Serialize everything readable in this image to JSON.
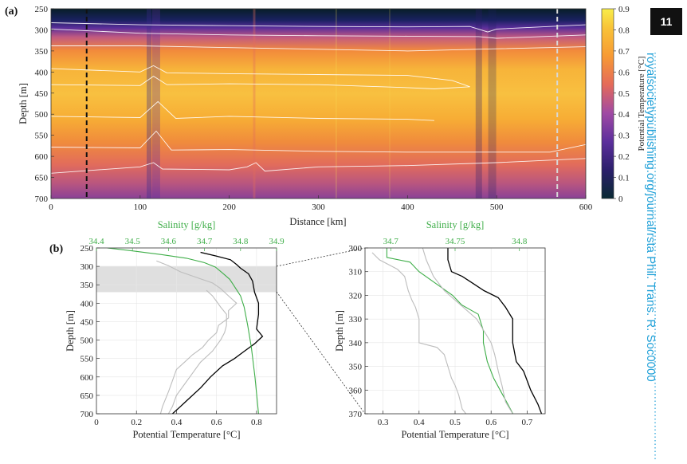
{
  "page_number": "11",
  "side_text": "royalsocietypublishing.org/journal/rsta Phil. Trans. R. Soc0000",
  "colors": {
    "green": "#3fae49",
    "black": "#000000",
    "grey": "#bdbdbd",
    "inset": "#d6d6d6"
  },
  "chart_data": [
    {
      "panel_label": "(a)",
      "type": "heatmap",
      "xlabel": "Distance [km]",
      "ylabel": "Depth [m]",
      "xlim": [
        0,
        600
      ],
      "ylim": [
        250,
        700
      ],
      "xticks": [
        "0",
        "100",
        "200",
        "300",
        "400",
        "500",
        "600"
      ],
      "yticks": [
        "250",
        "300",
        "350",
        "400",
        "450",
        "500",
        "550",
        "600",
        "650",
        "700"
      ],
      "colorbar": {
        "label": "Potential Temperature [°C]",
        "min": 0,
        "max": 0.9,
        "ticks": [
          "0",
          "0.1",
          "0.2",
          "0.3",
          "0.4",
          "0.5",
          "0.6",
          "0.7",
          "0.8",
          "0.9"
        ]
      },
      "vertical_markers": [
        {
          "x": 40,
          "color": "black"
        },
        {
          "x": 568,
          "color": "grey"
        }
      ],
      "contours": [
        {
          "level": 0.1,
          "points": [
            [
              0,
              283
            ],
            [
              100,
              288
            ],
            [
              200,
              290
            ],
            [
              300,
              292
            ],
            [
              400,
              293
            ],
            [
              470,
              292
            ],
            [
              490,
              305
            ],
            [
              500,
              298
            ],
            [
              600,
              288
            ]
          ]
        },
        {
          "level": 0.3,
          "points": [
            [
              0,
              298
            ],
            [
              100,
              308
            ],
            [
              200,
              312
            ],
            [
              300,
              314
            ],
            [
              400,
              315
            ],
            [
              480,
              316
            ],
            [
              500,
              320
            ],
            [
              600,
              312
            ]
          ]
        },
        {
          "level": 0.6,
          "points": [
            [
              0,
              338
            ],
            [
              100,
              338
            ],
            [
              200,
              342
            ],
            [
              300,
              346
            ],
            [
              400,
              350
            ],
            [
              500,
              345
            ],
            [
              600,
              340
            ]
          ]
        },
        {
          "level": 0.8,
          "points": [
            [
              0,
              392
            ],
            [
              100,
              400
            ],
            [
              115,
              385
            ],
            [
              130,
              402
            ],
            [
              200,
              404
            ],
            [
              300,
              406
            ],
            [
              400,
              408
            ],
            [
              450,
              420
            ],
            [
              470,
              435
            ],
            [
              430,
              440
            ],
            [
              400,
              437
            ],
            [
              300,
              430
            ],
            [
              200,
              428
            ],
            [
              130,
              430
            ],
            [
              115,
              410
            ],
            [
              100,
              432
            ],
            [
              0,
              430
            ]
          ]
        },
        {
          "level": 0.7,
          "points": [
            [
              0,
              505
            ],
            [
              100,
              508
            ],
            [
              120,
              470
            ],
            [
              140,
              510
            ],
            [
              200,
              505
            ],
            [
              300,
              510
            ],
            [
              400,
              512
            ],
            [
              430,
              515
            ]
          ]
        },
        {
          "level": 0.5,
          "points": [
            [
              0,
              578
            ],
            [
              100,
              580
            ],
            [
              118,
              540
            ],
            [
              135,
              585
            ],
            [
              200,
              584
            ],
            [
              300,
              588
            ],
            [
              400,
              590
            ],
            [
              500,
              590
            ],
            [
              560,
              590
            ],
            [
              600,
              572
            ]
          ]
        },
        {
          "level": 0.3,
          "points": [
            [
              0,
              640
            ],
            [
              100,
              625
            ],
            [
              115,
              615
            ],
            [
              125,
              630
            ],
            [
              200,
              632
            ],
            [
              220,
              625
            ],
            [
              230,
              615
            ],
            [
              240,
              635
            ],
            [
              300,
              625
            ],
            [
              400,
              622
            ],
            [
              500,
              615
            ],
            [
              600,
              605
            ]
          ]
        }
      ]
    },
    {
      "panel_label": "(b)",
      "type": "line",
      "xlabel": "Potential Temperature [°C]",
      "ylabel": "Depth [m]",
      "top_xlabel": "Salinity [g/kg]",
      "xlim": [
        0,
        0.9
      ],
      "ylim": [
        250,
        700
      ],
      "salinity_lim": [
        34.4,
        34.9
      ],
      "xticks": [
        "0",
        "0.2",
        "0.4",
        "0.6",
        "0.8"
      ],
      "top_xticks": [
        "34.4",
        "34.5",
        "34.6",
        "34.7",
        "34.8",
        "34.9"
      ],
      "yticks": [
        "250",
        "300",
        "350",
        "400",
        "450",
        "500",
        "550",
        "600",
        "650",
        "700"
      ],
      "highlight_band": [
        300,
        370
      ],
      "series": [
        {
          "color": "black",
          "axis": "temperature",
          "points": [
            [
              0.52,
              262
            ],
            [
              0.6,
              272
            ],
            [
              0.67,
              282
            ],
            [
              0.7,
              295
            ],
            [
              0.72,
              305
            ],
            [
              0.76,
              320
            ],
            [
              0.78,
              340
            ],
            [
              0.79,
              370
            ],
            [
              0.8,
              385
            ],
            [
              0.81,
              400
            ],
            [
              0.81,
              430
            ],
            [
              0.8,
              470
            ],
            [
              0.83,
              490
            ],
            [
              0.79,
              510
            ],
            [
              0.74,
              530
            ],
            [
              0.69,
              550
            ],
            [
              0.63,
              570
            ],
            [
              0.57,
              600
            ],
            [
              0.52,
              630
            ],
            [
              0.46,
              660
            ],
            [
              0.42,
              680
            ],
            [
              0.38,
              700
            ]
          ]
        },
        {
          "color": "grey",
          "axis": "temperature",
          "points": [
            [
              0.3,
              285
            ],
            [
              0.36,
              298
            ],
            [
              0.42,
              315
            ],
            [
              0.5,
              330
            ],
            [
              0.58,
              345
            ],
            [
              0.62,
              360
            ],
            [
              0.66,
              380
            ],
            [
              0.7,
              400
            ],
            [
              0.66,
              420
            ],
            [
              0.66,
              440
            ],
            [
              0.61,
              460
            ],
            [
              0.6,
              480
            ],
            [
              0.56,
              500
            ],
            [
              0.53,
              520
            ],
            [
              0.48,
              540
            ],
            [
              0.44,
              560
            ],
            [
              0.4,
              580
            ],
            [
              0.38,
              610
            ],
            [
              0.36,
              640
            ],
            [
              0.33,
              680
            ],
            [
              0.32,
              700
            ]
          ]
        },
        {
          "color": "grey",
          "axis": "temperature",
          "points": [
            [
              0.55,
              365
            ],
            [
              0.58,
              380
            ],
            [
              0.6,
              395
            ],
            [
              0.62,
              410
            ],
            [
              0.65,
              430
            ],
            [
              0.65,
              460
            ],
            [
              0.64,
              480
            ],
            [
              0.62,
              500
            ],
            [
              0.58,
              530
            ],
            [
              0.52,
              560
            ],
            [
              0.48,
              590
            ],
            [
              0.44,
              620
            ],
            [
              0.4,
              650
            ],
            [
              0.38,
              680
            ],
            [
              0.36,
              700
            ]
          ]
        },
        {
          "color": "green",
          "axis": "salinity",
          "points": [
            [
              34.43,
              250
            ],
            [
              34.5,
              258
            ],
            [
              34.58,
              268
            ],
            [
              34.65,
              278
            ],
            [
              34.7,
              290
            ],
            [
              34.73,
              302
            ],
            [
              34.75,
              318
            ],
            [
              34.77,
              335
            ],
            [
              34.78,
              350
            ],
            [
              34.79,
              365
            ],
            [
              34.8,
              380
            ],
            [
              34.81,
              410
            ],
            [
              34.82,
              460
            ],
            [
              34.83,
              520
            ],
            [
              34.84,
              600
            ],
            [
              34.85,
              700
            ]
          ]
        }
      ]
    },
    {
      "type": "line",
      "xlabel": "Potential Temperature [°C]",
      "ylabel": "Depth [m]",
      "top_xlabel": "Salinity [g/kg]",
      "xlim": [
        0.25,
        0.75
      ],
      "ylim": [
        300,
        370
      ],
      "salinity_lim": [
        34.68,
        34.82
      ],
      "xticks": [
        "0.3",
        "0.4",
        "0.5",
        "0.6",
        "0.7"
      ],
      "top_xticks": [
        "34.7",
        "34.75",
        "34.8"
      ],
      "yticks": [
        "300",
        "310",
        "320",
        "330",
        "340",
        "350",
        "360",
        "370"
      ],
      "series": [
        {
          "color": "black",
          "axis": "temperature",
          "points": [
            [
              0.48,
              300
            ],
            [
              0.48,
              305
            ],
            [
              0.49,
              310
            ],
            [
              0.52,
              312
            ],
            [
              0.55,
              315
            ],
            [
              0.58,
              318
            ],
            [
              0.62,
              321
            ],
            [
              0.64,
              325
            ],
            [
              0.66,
              330
            ],
            [
              0.66,
              340
            ],
            [
              0.67,
              348
            ],
            [
              0.69,
              352
            ],
            [
              0.7,
              356
            ],
            [
              0.71,
              360
            ],
            [
              0.73,
              366
            ],
            [
              0.74,
              370
            ]
          ]
        },
        {
          "color": "green",
          "axis": "salinity",
          "points": [
            [
              34.697,
              300
            ],
            [
              34.697,
              304
            ],
            [
              34.715,
              306
            ],
            [
              34.722,
              310
            ],
            [
              34.735,
              315
            ],
            [
              34.748,
              320
            ],
            [
              34.755,
              324
            ],
            [
              34.768,
              328
            ],
            [
              34.772,
              335
            ],
            [
              34.772,
              340
            ],
            [
              34.775,
              348
            ],
            [
              34.78,
              355
            ],
            [
              34.785,
              360
            ],
            [
              34.79,
              365
            ],
            [
              34.795,
              370
            ]
          ]
        },
        {
          "color": "grey",
          "axis": "temperature",
          "points": [
            [
              0.27,
              302
            ],
            [
              0.29,
              305
            ],
            [
              0.34,
              309
            ],
            [
              0.36,
              312
            ],
            [
              0.37,
              318
            ],
            [
              0.38,
              322
            ],
            [
              0.39,
              325
            ],
            [
              0.4,
              330
            ],
            [
              0.4,
              340
            ],
            [
              0.45,
              342
            ],
            [
              0.47,
              345
            ],
            [
              0.48,
              350
            ],
            [
              0.49,
              355
            ],
            [
              0.5,
              358
            ],
            [
              0.51,
              362
            ],
            [
              0.52,
              368
            ],
            [
              0.53,
              370
            ]
          ]
        },
        {
          "color": "grey",
          "axis": "temperature",
          "points": [
            [
              0.41,
              300
            ],
            [
              0.42,
              305
            ],
            [
              0.44,
              312
            ],
            [
              0.47,
              318
            ],
            [
              0.5,
              322
            ],
            [
              0.53,
              326
            ],
            [
              0.56,
              330
            ],
            [
              0.58,
              335
            ],
            [
              0.6,
              340
            ],
            [
              0.61,
              345
            ],
            [
              0.62,
              352
            ],
            [
              0.63,
              358
            ],
            [
              0.64,
              365
            ],
            [
              0.66,
              370
            ]
          ]
        }
      ]
    }
  ]
}
